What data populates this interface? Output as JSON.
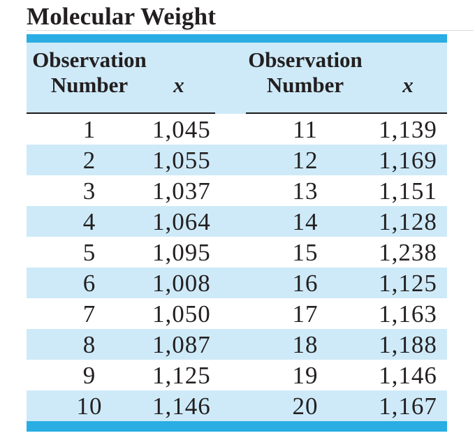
{
  "title": "Molecular Weight",
  "table": {
    "header_groups": [
      {
        "obs_line1": "Observation",
        "obs_line2": "Number",
        "x_label": "x"
      },
      {
        "obs_line1": "Observation",
        "obs_line2": "Number",
        "x_label": "x"
      }
    ],
    "rows": [
      {
        "o1": "1",
        "x1": "1,045",
        "o2": "11",
        "x2": "1,139"
      },
      {
        "o1": "2",
        "x1": "1,055",
        "o2": "12",
        "x2": "1,169"
      },
      {
        "o1": "3",
        "x1": "1,037",
        "o2": "13",
        "x2": "1,151"
      },
      {
        "o1": "4",
        "x1": "1,064",
        "o2": "14",
        "x2": "1,128"
      },
      {
        "o1": "5",
        "x1": "1,095",
        "o2": "15",
        "x2": "1,238"
      },
      {
        "o1": "6",
        "x1": "1,008",
        "o2": "16",
        "x2": "1,125"
      },
      {
        "o1": "7",
        "x1": "1,050",
        "o2": "17",
        "x2": "1,163"
      },
      {
        "o1": "8",
        "x1": "1,087",
        "o2": "18",
        "x2": "1,188"
      },
      {
        "o1": "9",
        "x1": "1,125",
        "o2": "19",
        "x2": "1,146"
      },
      {
        "o1": "10",
        "x1": "1,146",
        "o2": "20",
        "x2": "1,167"
      }
    ]
  },
  "colors": {
    "accent_bar": "#29ade3",
    "row_stripe": "#ceeaf8",
    "text": "#231f20"
  }
}
